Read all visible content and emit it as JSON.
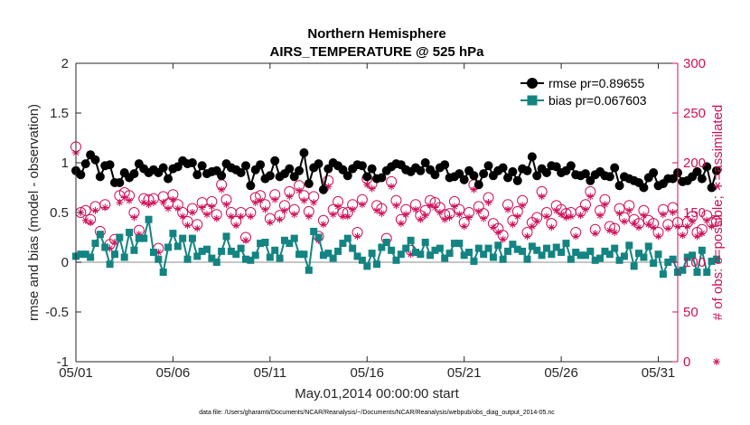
{
  "chart_data": {
    "type": "line",
    "title": "Northern Hemisphere",
    "subtitle": "AIRS_TEMPERATURE @ 525 hPa",
    "xlabel": "May.01,2014 00:00:00 start",
    "ylabel": "rmse and bias (model - observation)",
    "y2label": "# of obs: o=possible; ∗=assimilated",
    "footer": "data file: /Users/gharamti/Documents/NCAR/Reanalysis/~/Documents/NCAR/Reanalysis/webpub/obs_diag_output_2014-05.nc",
    "xlim": [
      1,
      32
    ],
    "ylim": [
      -1,
      2
    ],
    "y2lim": [
      0,
      300
    ],
    "x_ticks": [
      1,
      6,
      11,
      16,
      21,
      26,
      31
    ],
    "x_tick_labels": [
      "05/01",
      "05/06",
      "05/11",
      "05/16",
      "05/21",
      "05/26",
      "05/31"
    ],
    "y_ticks": [
      -1,
      -0.5,
      0,
      0.5,
      1,
      1.5,
      2
    ],
    "y_tick_labels": [
      "-1",
      "-0.5",
      "0",
      "0.5",
      "1",
      "1.5",
      "2"
    ],
    "y2_ticks": [
      0,
      50,
      100,
      150,
      200,
      250,
      300
    ],
    "y2_tick_labels": [
      "0",
      "50",
      "100",
      "150",
      "200",
      "250",
      "300"
    ],
    "grid": false,
    "legend_position": "top-right",
    "x_step_days": 0.25,
    "series": [
      {
        "name": "rmse pr=0.89655",
        "axis": "left",
        "marker": "circle",
        "color": "#000000",
        "values": [
          0.92,
          0.88,
          0.99,
          1.08,
          1.03,
          0.86,
          0.97,
          0.98,
          0.8,
          0.8,
          0.9,
          0.85,
          0.89,
          0.99,
          0.94,
          0.9,
          0.93,
          0.9,
          0.95,
          0.84,
          0.94,
          0.96,
          1.02,
          0.99,
          1.0,
          0.88,
          0.97,
          0.89,
          0.91,
          0.92,
          0.87,
          0.99,
          0.95,
          0.93,
          0.9,
          0.97,
          0.77,
          0.93,
          0.98,
          0.84,
          0.87,
          1.02,
          0.86,
          0.89,
          0.94,
          0.86,
          0.92,
          1.1,
          0.79,
          0.95,
          0.99,
          0.73,
          0.94,
          1.0,
          0.97,
          0.93,
          0.87,
          0.94,
          0.98,
          0.97,
          0.86,
          0.94,
          0.84,
          0.85,
          0.92,
          0.96,
          0.99,
          0.98,
          0.93,
          0.91,
          0.95,
          0.92,
          1.0,
          0.93,
          0.88,
          0.95,
          0.98,
          0.85,
          0.86,
          0.89,
          0.83,
          0.92,
          0.87,
          0.78,
          0.89,
          0.97,
          0.87,
          0.92,
          0.95,
          0.85,
          0.91,
          0.82,
          0.94,
          0.92,
          1.06,
          0.87,
          0.94,
          0.9,
          0.97,
          0.96,
          0.9,
          0.92,
          0.97,
          0.88,
          0.87,
          0.89,
          0.82,
          0.88,
          0.91,
          0.87,
          0.86,
          0.95,
          0.77,
          0.86,
          0.84,
          0.82,
          0.8,
          0.75,
          0.85,
          0.9,
          0.77,
          0.79,
          0.84,
          0.84,
          0.9,
          0.81,
          0.82,
          0.86,
          0.91,
          0.84,
          0.96,
          0.75,
          0.92
        ],
        "values_note": "rmse, 6-hourly from 05/01 00Z"
      },
      {
        "name": "bias pr=0.067603",
        "axis": "left",
        "marker": "square",
        "color": "#138482",
        "values": [
          0.06,
          0.08,
          0.08,
          0.05,
          0.19,
          0.28,
          0.15,
          -0.02,
          0.08,
          0.25,
          0.05,
          0.3,
          0.12,
          0.24,
          0.24,
          0.43,
          0.1,
          0.03,
          -0.1,
          0.15,
          0.29,
          0.16,
          0.24,
          0.03,
          0.24,
          0.06,
          0.11,
          0.13,
          0.04,
          0.0,
          0.11,
          0.26,
          0.11,
          0.08,
          0.14,
          0.03,
          0.02,
          0.07,
          0.19,
          0.2,
          0.05,
          0.12,
          0.04,
          0.22,
          0.19,
          0.24,
          0.08,
          0.08,
          -0.08,
          0.31,
          0.25,
          0.07,
          0.09,
          0.04,
          0.11,
          0.19,
          0.24,
          0.14,
          0.06,
          0.02,
          -0.04,
          0.09,
          -0.02,
          0.15,
          0.2,
          0.12,
          0.02,
          0.08,
          0.14,
          0.22,
          0.1,
          0.08,
          0.2,
          0.07,
          0.12,
          0.14,
          0.04,
          0.09,
          0.19,
          0.19,
          0.07,
          0.1,
          0.01,
          0.14,
          0.08,
          0.14,
          0.05,
          0.17,
          0.03,
          0.11,
          0.18,
          0.13,
          0.11,
          0.03,
          0.16,
          0.12,
          0.07,
          0.14,
          0.08,
          0.15,
          0.1,
          0.19,
          0.03,
          0.1,
          0.07,
          0.07,
          0.11,
          0.02,
          0.04,
          0.11,
          0.08,
          0.14,
          0.02,
          0.06,
          0.17,
          -0.04,
          0.09,
          0.05,
          0.16,
          -0.01,
          0.08,
          -0.12,
          0.0,
          0.03,
          -0.1,
          -0.08,
          0.05,
          0.07,
          -0.1,
          0.12,
          -0.1,
          0.01,
          0.03
        ],
        "values_note": "bias, 6-hourly from 05/01 00Z"
      },
      {
        "name": "possible",
        "axis": "right",
        "marker": "open-circle",
        "color": "#d0105a",
        "values": [
          216,
          150,
          152,
          143,
          156,
          131,
          158,
          118,
          123,
          167,
          170,
          167,
          150,
          132,
          164,
          163,
          164,
          114,
          166,
          159,
          168,
          158,
          150,
          141,
          154,
          138,
          160,
          153,
          161,
          148,
          178,
          163,
          150,
          141,
          150,
          125,
          150,
          165,
          167,
          158,
          144,
          168,
          147,
          157,
          171,
          153,
          177,
          167,
          151,
          166,
          126,
          142,
          182,
          153,
          161,
          150,
          150,
          158,
          130,
          163,
          184,
          179,
          157,
          154,
          124,
          181,
          162,
          143,
          153,
          112,
          158,
          147,
          152,
          162,
          160,
          155,
          148,
          149,
          161,
          153,
          140,
          150,
          178,
          156,
          149,
          165,
          139,
          134,
          127,
          158,
          142,
          151,
          162,
          130,
          140,
          145,
          171,
          150,
          139,
          157,
          153,
          149,
          150,
          130,
          151,
          158,
          171,
          133,
          152,
          163,
          136,
          134,
          154,
          145,
          157,
          143,
          139,
          152,
          142,
          139,
          130,
          153,
          138,
          155,
          140,
          131,
          140,
          146,
          130,
          133,
          147,
          140,
          141
        ],
        "values_note": "obs count, right axis"
      },
      {
        "name": "assimilated",
        "axis": "right",
        "marker": "asterisk",
        "color": "#d0105a",
        "values": [
          210,
          150,
          142,
          140,
          152,
          128,
          155,
          114,
          120,
          160,
          165,
          162,
          145,
          128,
          160,
          158,
          160,
          110,
          160,
          154,
          163,
          154,
          146,
          137,
          150,
          134,
          155,
          148,
          156,
          144,
          173,
          158,
          146,
          137,
          146,
          122,
          146,
          160,
          162,
          153,
          140,
          163,
          143,
          152,
          166,
          148,
          172,
          162,
          146,
          160,
          122,
          138,
          176,
          148,
          156,
          146,
          146,
          153,
          126,
          158,
          178,
          174,
          152,
          149,
          120,
          176,
          157,
          139,
          148,
          108,
          153,
          143,
          147,
          157,
          155,
          150,
          143,
          145,
          156,
          148,
          136,
          145,
          173,
          151,
          144,
          160,
          135,
          130,
          123,
          153,
          138,
          146,
          157,
          126,
          136,
          141,
          166,
          146,
          135,
          152,
          148,
          145,
          146,
          126,
          147,
          153,
          166,
          129,
          147,
          158,
          132,
          130,
          149,
          141,
          152,
          139,
          135,
          147,
          138,
          135,
          126,
          148,
          134,
          150,
          136,
          127,
          136,
          141,
          126,
          129,
          142,
          136,
          0
        ],
        "values_note": "obs count, right axis"
      }
    ]
  }
}
